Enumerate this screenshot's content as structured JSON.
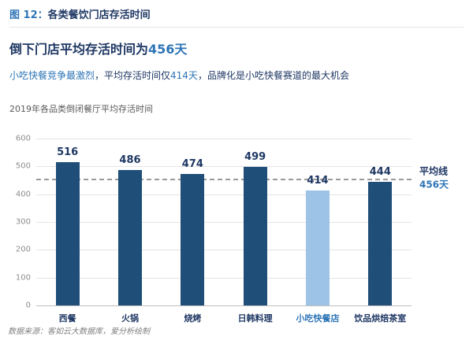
{
  "header": {
    "figure_label": "图 12：",
    "figure_title": "各类餐饮门店存活时间"
  },
  "headline": {
    "prefix": "倒下门店平均存活时间为",
    "highlight": "456天"
  },
  "subtitle": {
    "seg1": "小吃快餐竞争最激烈",
    "seg2": "，平均存活时间仅",
    "seg3": "414天",
    "seg4": "，品牌化是小吃快餐赛道的最大机会"
  },
  "chart_title": "2019年各品类倒闭餐厅平均存活时间",
  "chart_data": {
    "type": "bar",
    "title": "2019年各品类倒闭餐厅平均存活时间",
    "categories": [
      "西餐",
      "火锅",
      "烧烤",
      "日韩料理",
      "小吃快餐店",
      "饮品烘焙茶室"
    ],
    "values": [
      516,
      486,
      474,
      499,
      414,
      444
    ],
    "highlight_index": 4,
    "average": 456,
    "average_label": "平均线",
    "average_value_label": "456天",
    "xlabel": "",
    "ylabel": "",
    "ylim": [
      0,
      600
    ],
    "ytick_step": 100,
    "grid": true,
    "legend": "none",
    "bar_color": "#1f4e79",
    "highlight_color": "#9dc3e6"
  },
  "footer": {
    "source": "数据来源：客如云大数据库，爱分析绘制"
  },
  "colors": {
    "accent": "#2e75b6",
    "dark": "#1f3864",
    "muted": "#7f7f7f"
  }
}
